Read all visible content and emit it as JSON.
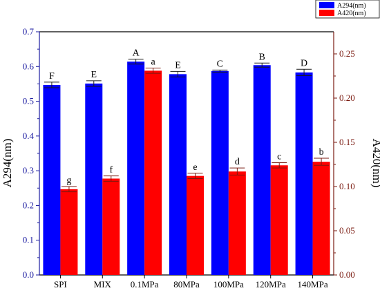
{
  "chart_data": {
    "type": "bar",
    "categories": [
      "SPI",
      "MIX",
      "0.1MPa",
      "80MPa",
      "100MPa",
      "120MPa",
      "140MPa"
    ],
    "series": [
      {
        "name": "A294(nm)",
        "axis": "left",
        "color": "#0000ff",
        "values": [
          0.547,
          0.551,
          0.614,
          0.578,
          0.587,
          0.604,
          0.583
        ],
        "errors": [
          0.008,
          0.008,
          0.007,
          0.008,
          0.003,
          0.006,
          0.009
        ],
        "letters": [
          "F",
          "E",
          "A",
          "E",
          "C",
          "B",
          "D"
        ]
      },
      {
        "name": "A420(nm)",
        "axis": "right",
        "color": "#ff0000",
        "values": [
          0.097,
          0.109,
          0.231,
          0.112,
          0.117,
          0.124,
          0.128
        ],
        "errors": [
          0.003,
          0.003,
          0.003,
          0.003,
          0.004,
          0.003,
          0.004
        ],
        "letters": [
          "g",
          "f",
          "a",
          "e",
          "d",
          "c",
          "b"
        ]
      }
    ],
    "ylabel_left": "A294(nm)",
    "ylabel_right": "A420(nm)",
    "ylim_left": [
      0,
      0.7
    ],
    "yticks_left": [
      "0.0",
      "0.1",
      "0.2",
      "0.3",
      "0.4",
      "0.5",
      "0.6",
      "0.7"
    ],
    "ylim_right": [
      0,
      0.275
    ],
    "yticks_right": [
      "0.00",
      "0.05",
      "0.10",
      "0.15",
      "0.20",
      "0.25"
    ],
    "left_axis_color": "#1a1aa0",
    "right_axis_color": "#7a1a10",
    "grid": false,
    "legend_position": "top-right"
  }
}
